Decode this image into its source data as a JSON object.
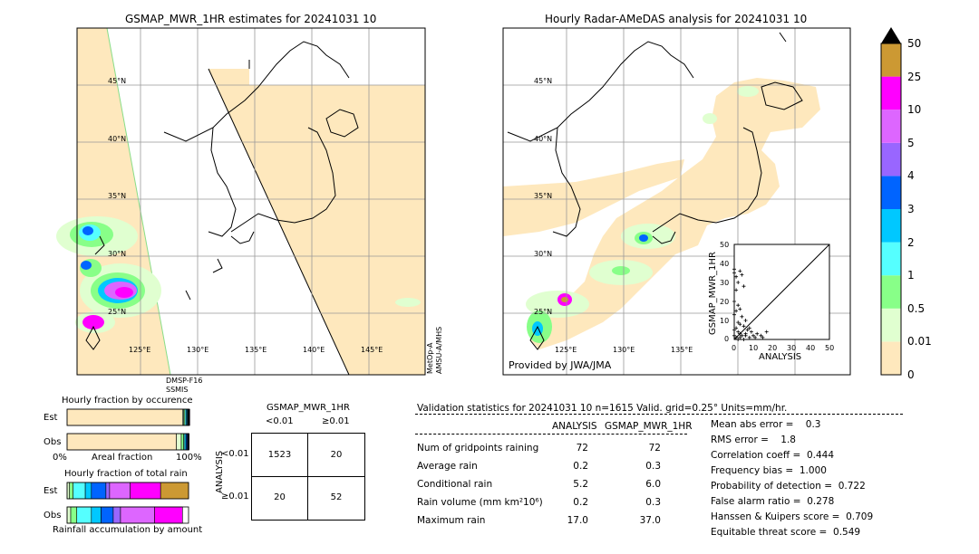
{
  "left_map": {
    "title": "GSMAP_MWR_1HR estimates for 20241031 10",
    "lat_labels": [
      "45°N",
      "40°N",
      "35°N",
      "30°N",
      "25°N"
    ],
    "lon_labels": [
      "125°E",
      "130°E",
      "135°E",
      "140°E",
      "145°E"
    ],
    "sensor_bottom": "DMSP-F16\nSSMIS",
    "sensor_right": "MetOp-A\nAMSU-A/MHS"
  },
  "right_map": {
    "title": "Hourly Radar-AMeDAS analysis for 20241031 10",
    "lat_labels": [
      "45°N",
      "40°N",
      "35°N",
      "30°N",
      "25°N"
    ],
    "lon_labels": [
      "125°E",
      "130°E",
      "135°E"
    ],
    "credit": "Provided by JWA/JMA"
  },
  "colorbar": {
    "ticks": [
      "0",
      "0.01",
      "0.5",
      "1",
      "2",
      "3",
      "4",
      "5",
      "10",
      "25",
      "50"
    ],
    "colors": [
      "#FEE8BD",
      "#E0FFD0",
      "#88FF88",
      "#55FFFF",
      "#00C8FF",
      "#0064FF",
      "#9966FF",
      "#DD66FF",
      "#FF00FF",
      "#CC9933"
    ],
    "over_color": "#000000"
  },
  "chart_data": [
    {
      "type": "scatter",
      "xlabel": "ANALYSIS",
      "ylabel": "GSMAP_MWR_1HR",
      "xlim": [
        0,
        50
      ],
      "ylim": [
        0,
        50
      ],
      "xticks": [
        "0",
        "10",
        "20",
        "30",
        "40",
        "50"
      ],
      "yticks": [
        "0",
        "10",
        "20",
        "30",
        "40",
        "50"
      ],
      "points": [
        [
          0,
          37
        ],
        [
          0,
          35
        ],
        [
          1,
          33
        ],
        [
          2,
          30
        ],
        [
          3,
          36
        ],
        [
          4,
          34
        ],
        [
          5,
          28
        ],
        [
          1,
          26
        ],
        [
          0,
          20
        ],
        [
          2,
          18
        ],
        [
          3,
          16
        ],
        [
          1,
          15
        ],
        [
          0,
          13
        ],
        [
          4,
          12
        ],
        [
          6,
          10
        ],
        [
          2,
          9
        ],
        [
          3,
          8
        ],
        [
          5,
          7
        ],
        [
          1,
          6
        ],
        [
          0,
          5
        ],
        [
          2,
          4
        ],
        [
          3,
          3
        ],
        [
          4,
          2
        ],
        [
          6,
          2
        ],
        [
          8,
          1
        ],
        [
          10,
          2
        ],
        [
          12,
          3
        ],
        [
          15,
          1
        ],
        [
          17,
          4
        ],
        [
          7,
          5
        ],
        [
          9,
          4
        ],
        [
          11,
          1
        ],
        [
          0,
          2
        ],
        [
          1,
          1
        ],
        [
          2,
          0
        ],
        [
          5,
          0
        ],
        [
          3,
          1
        ],
        [
          6,
          3
        ],
        [
          8,
          6
        ],
        [
          14,
          2
        ]
      ]
    },
    {
      "type": "bar",
      "title": "Hourly fraction by occurence",
      "categories": [
        "Est",
        "Obs"
      ],
      "xlabel": "Areal fraction",
      "xticks": [
        "0%",
        "100%"
      ],
      "series": [
        {
          "name": "0",
          "color": "#FEE8BD",
          "values": [
            0.95,
            0.9
          ]
        },
        {
          "name": "0.01",
          "color": "#E0FFD0",
          "values": [
            0.01,
            0.04
          ]
        },
        {
          "name": "0.5",
          "color": "#88FF88",
          "values": [
            0.01,
            0.02
          ]
        },
        {
          "name": "1",
          "color": "#55FFFF",
          "values": [
            0.01,
            0.01
          ]
        },
        {
          "name": "2",
          "color": "#00C8FF",
          "values": [
            0.01,
            0.01
          ]
        },
        {
          "name": "3",
          "color": "#0064FF",
          "values": [
            0.005,
            0.01
          ]
        },
        {
          "name": "4",
          "color": "#9966FF",
          "values": [
            0.005,
            0.005
          ]
        },
        {
          "name": "5",
          "color": "#DD66FF",
          "values": [
            0.005,
            0.005
          ]
        },
        {
          "name": "10",
          "color": "#FF00FF",
          "values": [
            0.005,
            0.005
          ]
        }
      ]
    },
    {
      "type": "bar",
      "title": "Hourly fraction of total rain",
      "categories": [
        "Est",
        "Obs"
      ],
      "xlabel": "Rainfall accumulation by amount",
      "series": [
        {
          "name": "0.01",
          "color": "#E0FFD0",
          "values": [
            0.02,
            0.03
          ]
        },
        {
          "name": "0.5",
          "color": "#88FF88",
          "values": [
            0.03,
            0.05
          ]
        },
        {
          "name": "1",
          "color": "#55FFFF",
          "values": [
            0.1,
            0.12
          ]
        },
        {
          "name": "2",
          "color": "#00C8FF",
          "values": [
            0.05,
            0.08
          ]
        },
        {
          "name": "3",
          "color": "#0064FF",
          "values": [
            0.12,
            0.1
          ]
        },
        {
          "name": "4",
          "color": "#9966FF",
          "values": [
            0.03,
            0.06
          ]
        },
        {
          "name": "5",
          "color": "#DD66FF",
          "values": [
            0.17,
            0.28
          ]
        },
        {
          "name": "10",
          "color": "#FF00FF",
          "values": [
            0.25,
            0.23
          ]
        },
        {
          "name": "25",
          "color": "#CC9933",
          "values": [
            0.23,
            0.0
          ]
        }
      ]
    },
    {
      "type": "table",
      "title": "GSMAP_MWR_1HR",
      "col_headers": [
        "<0.01",
        "≥0.01"
      ],
      "row_headers": [
        "<0.01",
        "≥0.01"
      ],
      "row_axis_label": "ANALYSIS",
      "cells": [
        [
          "1523",
          "20"
        ],
        [
          "20",
          "52"
        ]
      ]
    }
  ],
  "stats": {
    "header": "Validation statistics for 20241031 10  n=1615 Valid. grid=0.25° Units=mm/hr.",
    "col_analysis": "ANALYSIS",
    "col_gsmap": "GSMAP_MWR_1HR",
    "rows": [
      {
        "label": "Num of gridpoints raining",
        "a": "72",
        "g": "72"
      },
      {
        "label": "Average rain",
        "a": "0.2",
        "g": "0.3"
      },
      {
        "label": "Conditional rain",
        "a": "5.2",
        "g": "6.0"
      },
      {
        "label": "Rain volume (mm km²10⁶)",
        "a": "0.2",
        "g": "0.3"
      },
      {
        "label": "Maximum rain",
        "a": "17.0",
        "g": "37.0"
      }
    ],
    "scores": [
      "Mean abs error =    0.3",
      "RMS error =    1.8",
      "Correlation coeff =  0.444",
      "Frequency bias =  1.000",
      "Probability of detection =  0.722",
      "False alarm ratio =  0.278",
      "Hanssen & Kuipers score =  0.709",
      "Equitable threat score =  0.549"
    ]
  }
}
